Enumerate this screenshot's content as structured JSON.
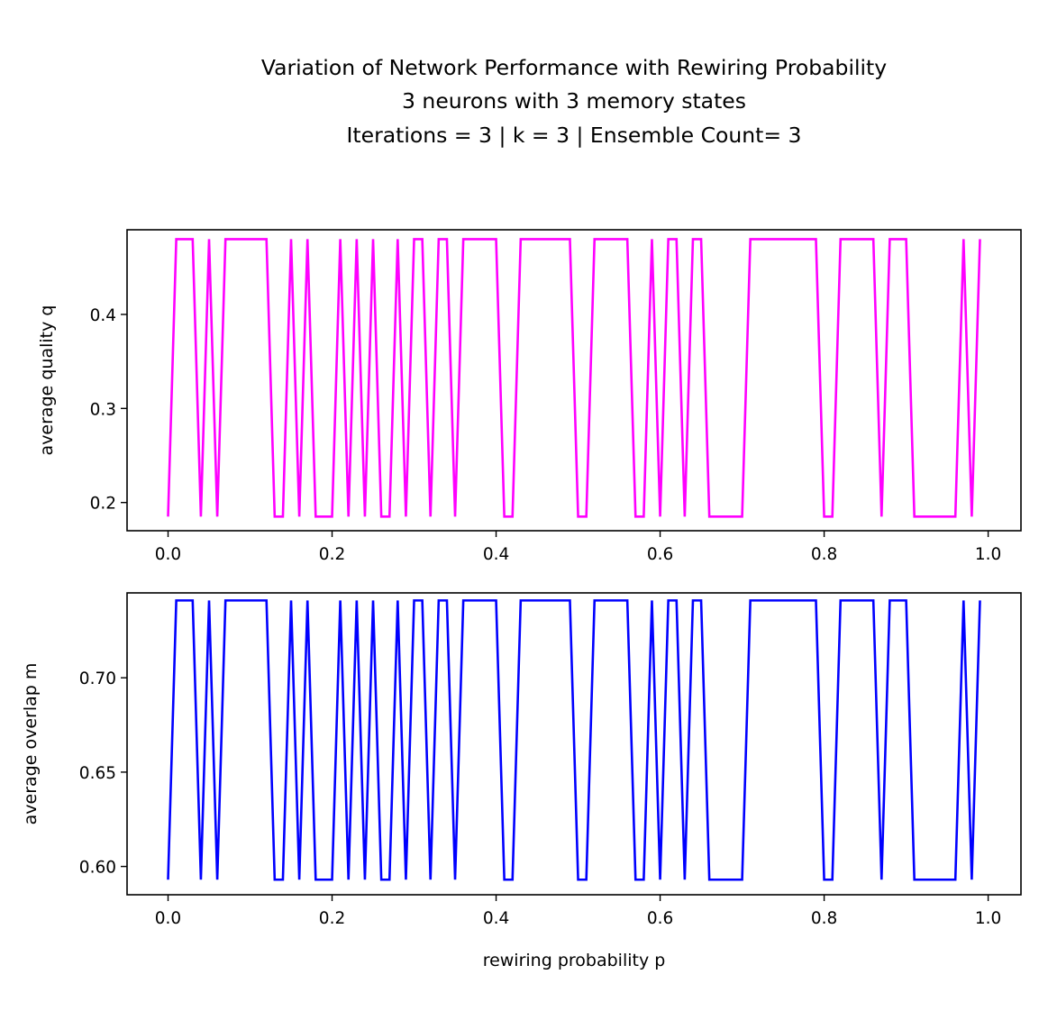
{
  "figure": {
    "title_lines": [
      "Variation of Network Performance with Rewiring Probability",
      "3 neurons with 3 memory states",
      "Iterations = 3 |  k = 3 | Ensemble Count= 3"
    ]
  },
  "chart_data": [
    {
      "type": "line",
      "ylabel": "average quality q",
      "xlabel": "",
      "xlim": [
        -0.05,
        1.04
      ],
      "ylim": [
        0.17,
        0.49
      ],
      "xticks": [
        0.0,
        0.2,
        0.4,
        0.6,
        0.8,
        1.0
      ],
      "xtick_labels": [
        "0.0",
        "0.2",
        "0.4",
        "0.6",
        "0.8",
        "1.0"
      ],
      "yticks": [
        0.2,
        0.3,
        0.4
      ],
      "ytick_labels": [
        "0.2",
        "0.3",
        "0.4"
      ],
      "grid": false,
      "color": "#ff00ff",
      "series": [
        {
          "x": [
            0.0,
            0.01,
            0.02,
            0.03,
            0.04,
            0.05,
            0.06,
            0.07,
            0.08,
            0.09,
            0.1,
            0.11,
            0.12,
            0.13,
            0.14,
            0.15,
            0.16,
            0.17,
            0.18,
            0.19,
            0.2,
            0.21,
            0.22,
            0.23,
            0.24,
            0.25,
            0.26,
            0.27,
            0.28,
            0.29,
            0.3,
            0.31,
            0.32,
            0.33,
            0.34,
            0.35,
            0.36,
            0.37,
            0.38,
            0.39,
            0.4,
            0.41,
            0.42,
            0.43,
            0.44,
            0.45,
            0.46,
            0.47,
            0.48,
            0.49,
            0.5,
            0.51,
            0.52,
            0.53,
            0.54,
            0.55,
            0.56,
            0.57,
            0.58,
            0.59,
            0.6,
            0.61,
            0.62,
            0.63,
            0.64,
            0.65,
            0.66,
            0.67,
            0.68,
            0.69,
            0.7,
            0.71,
            0.72,
            0.73,
            0.74,
            0.75,
            0.76,
            0.77,
            0.78,
            0.79,
            0.8,
            0.81,
            0.82,
            0.83,
            0.84,
            0.85,
            0.86,
            0.87,
            0.88,
            0.89,
            0.9,
            0.91,
            0.92,
            0.93,
            0.94,
            0.95,
            0.96,
            0.97,
            0.98,
            0.99
          ],
          "values": [
            0.185,
            0.48,
            0.48,
            0.48,
            0.185,
            0.48,
            0.185,
            0.48,
            0.48,
            0.48,
            0.48,
            0.48,
            0.48,
            0.185,
            0.185,
            0.48,
            0.185,
            0.48,
            0.185,
            0.185,
            0.185,
            0.48,
            0.185,
            0.48,
            0.185,
            0.48,
            0.185,
            0.185,
            0.48,
            0.185,
            0.48,
            0.48,
            0.185,
            0.48,
            0.48,
            0.185,
            0.48,
            0.48,
            0.48,
            0.48,
            0.48,
            0.185,
            0.185,
            0.48,
            0.48,
            0.48,
            0.48,
            0.48,
            0.48,
            0.48,
            0.185,
            0.185,
            0.48,
            0.48,
            0.48,
            0.48,
            0.48,
            0.185,
            0.185,
            0.48,
            0.185,
            0.48,
            0.48,
            0.185,
            0.48,
            0.48,
            0.185,
            0.185,
            0.185,
            0.185,
            0.185,
            0.48,
            0.48,
            0.48,
            0.48,
            0.48,
            0.48,
            0.48,
            0.48,
            0.48,
            0.185,
            0.185,
            0.48,
            0.48,
            0.48,
            0.48,
            0.48,
            0.185,
            0.48,
            0.48,
            0.48,
            0.185,
            0.185,
            0.185,
            0.185,
            0.185,
            0.185,
            0.48,
            0.185,
            0.48
          ]
        }
      ]
    },
    {
      "type": "line",
      "ylabel": "average overlap m",
      "xlabel": "rewiring probability p",
      "xlim": [
        -0.05,
        1.04
      ],
      "ylim": [
        0.585,
        0.745
      ],
      "xticks": [
        0.0,
        0.2,
        0.4,
        0.6,
        0.8,
        1.0
      ],
      "xtick_labels": [
        "0.0",
        "0.2",
        "0.4",
        "0.6",
        "0.8",
        "1.0"
      ],
      "yticks": [
        0.6,
        0.65,
        0.7
      ],
      "ytick_labels": [
        "0.60",
        "0.65",
        "0.70"
      ],
      "grid": false,
      "color": "#0000ff",
      "series": [
        {
          "x": [
            0.0,
            0.01,
            0.02,
            0.03,
            0.04,
            0.05,
            0.06,
            0.07,
            0.08,
            0.09,
            0.1,
            0.11,
            0.12,
            0.13,
            0.14,
            0.15,
            0.16,
            0.17,
            0.18,
            0.19,
            0.2,
            0.21,
            0.22,
            0.23,
            0.24,
            0.25,
            0.26,
            0.27,
            0.28,
            0.29,
            0.3,
            0.31,
            0.32,
            0.33,
            0.34,
            0.35,
            0.36,
            0.37,
            0.38,
            0.39,
            0.4,
            0.41,
            0.42,
            0.43,
            0.44,
            0.45,
            0.46,
            0.47,
            0.48,
            0.49,
            0.5,
            0.51,
            0.52,
            0.53,
            0.54,
            0.55,
            0.56,
            0.57,
            0.58,
            0.59,
            0.6,
            0.61,
            0.62,
            0.63,
            0.64,
            0.65,
            0.66,
            0.67,
            0.68,
            0.69,
            0.7,
            0.71,
            0.72,
            0.73,
            0.74,
            0.75,
            0.76,
            0.77,
            0.78,
            0.79,
            0.8,
            0.81,
            0.82,
            0.83,
            0.84,
            0.85,
            0.86,
            0.87,
            0.88,
            0.89,
            0.9,
            0.91,
            0.92,
            0.93,
            0.94,
            0.95,
            0.96,
            0.97,
            0.98,
            0.99
          ],
          "values": [
            0.593,
            0.741,
            0.741,
            0.741,
            0.593,
            0.741,
            0.593,
            0.741,
            0.741,
            0.741,
            0.741,
            0.741,
            0.741,
            0.593,
            0.593,
            0.741,
            0.593,
            0.741,
            0.593,
            0.593,
            0.593,
            0.741,
            0.593,
            0.741,
            0.593,
            0.741,
            0.593,
            0.593,
            0.741,
            0.593,
            0.741,
            0.741,
            0.593,
            0.741,
            0.741,
            0.593,
            0.741,
            0.741,
            0.741,
            0.741,
            0.741,
            0.593,
            0.593,
            0.741,
            0.741,
            0.741,
            0.741,
            0.741,
            0.741,
            0.741,
            0.593,
            0.593,
            0.741,
            0.741,
            0.741,
            0.741,
            0.741,
            0.593,
            0.593,
            0.741,
            0.593,
            0.741,
            0.741,
            0.593,
            0.741,
            0.741,
            0.593,
            0.593,
            0.593,
            0.593,
            0.593,
            0.741,
            0.741,
            0.741,
            0.741,
            0.741,
            0.741,
            0.741,
            0.741,
            0.741,
            0.593,
            0.593,
            0.741,
            0.741,
            0.741,
            0.741,
            0.741,
            0.593,
            0.741,
            0.741,
            0.741,
            0.593,
            0.593,
            0.593,
            0.593,
            0.593,
            0.593,
            0.741,
            0.593,
            0.741
          ]
        }
      ]
    }
  ]
}
